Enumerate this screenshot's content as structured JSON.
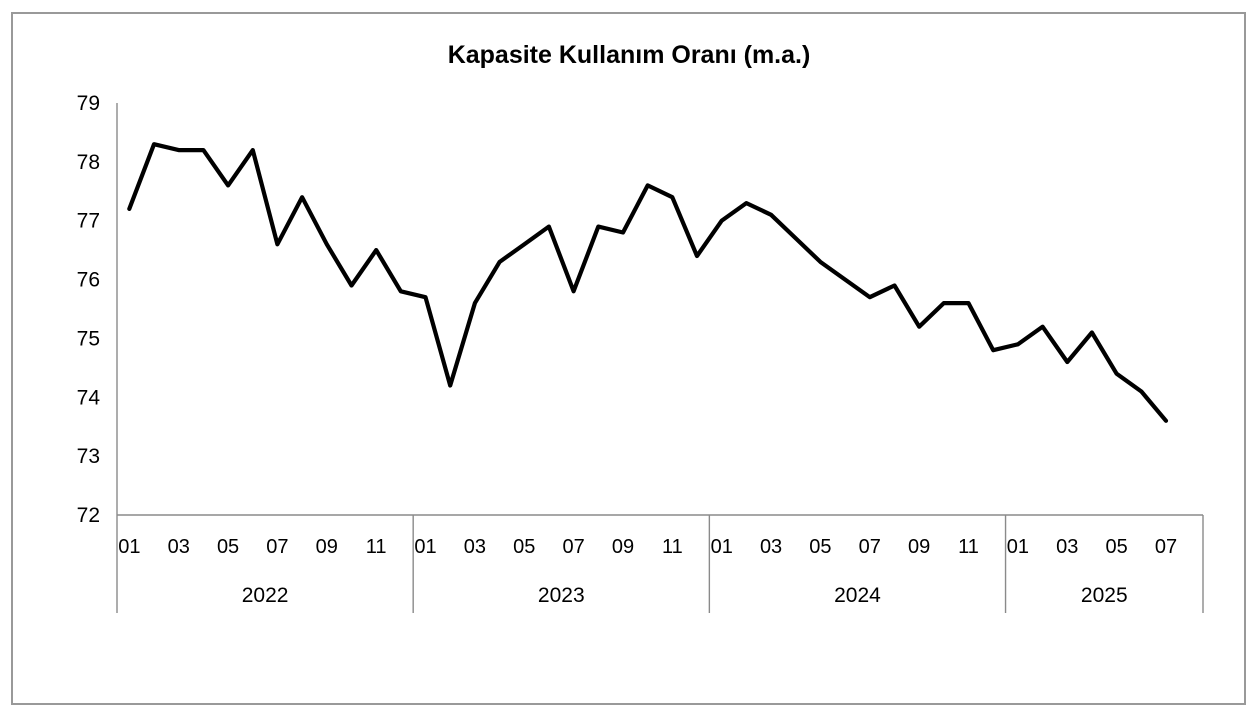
{
  "chart_data": {
    "type": "line",
    "title": "Kapasite Kullanım Oranı (m.a.)",
    "grid": false,
    "legend": "none",
    "colors": {
      "line": "#000000",
      "axis": "#8a8a8a",
      "border": "#999999",
      "background": "#ffffff",
      "text": "#000000"
    },
    "y_axis": {
      "min": 72,
      "max": 79,
      "step": 1,
      "tick_labels": [
        "72",
        "73",
        "74",
        "75",
        "76",
        "77",
        "78",
        "79"
      ]
    },
    "x_axis": {
      "years": [
        {
          "label": "2022",
          "slots": 12,
          "month_tick_labels": [
            "01",
            "03",
            "05",
            "07",
            "09",
            "11"
          ]
        },
        {
          "label": "2023",
          "slots": 12,
          "month_tick_labels": [
            "01",
            "03",
            "05",
            "07",
            "09",
            "11"
          ]
        },
        {
          "label": "2024",
          "slots": 12,
          "month_tick_labels": [
            "01",
            "03",
            "05",
            "07",
            "09",
            "11"
          ]
        },
        {
          "label": "2025",
          "slots": 8,
          "month_tick_labels": [
            "01",
            "03",
            "05",
            "07"
          ]
        }
      ]
    },
    "series": [
      {
        "name": "Kapasite Kullanım Oranı (m.a.)",
        "color": "#000000",
        "categories": [
          "2022-01",
          "2022-02",
          "2022-03",
          "2022-04",
          "2022-05",
          "2022-06",
          "2022-07",
          "2022-08",
          "2022-09",
          "2022-10",
          "2022-11",
          "2022-12",
          "2023-01",
          "2023-02",
          "2023-03",
          "2023-04",
          "2023-05",
          "2023-06",
          "2023-07",
          "2023-08",
          "2023-09",
          "2023-10",
          "2023-11",
          "2023-12",
          "2024-01",
          "2024-02",
          "2024-03",
          "2024-04",
          "2024-05",
          "2024-06",
          "2024-07",
          "2024-08",
          "2024-09",
          "2024-10",
          "2024-11",
          "2024-12",
          "2025-01",
          "2025-02",
          "2025-03",
          "2025-04",
          "2025-05",
          "2025-06",
          "2025-07"
        ],
        "values": [
          77.2,
          78.3,
          78.2,
          78.2,
          77.6,
          78.2,
          76.6,
          77.4,
          76.6,
          75.9,
          76.5,
          75.8,
          75.7,
          74.2,
          75.6,
          76.3,
          76.6,
          76.9,
          75.8,
          76.9,
          76.8,
          77.6,
          77.4,
          76.4,
          77.0,
          77.3,
          77.1,
          76.7,
          76.3,
          76.0,
          75.7,
          75.9,
          75.2,
          75.6,
          75.6,
          74.8,
          74.9,
          75.2,
          74.6,
          75.1,
          74.4,
          74.1,
          73.6
        ]
      }
    ]
  }
}
